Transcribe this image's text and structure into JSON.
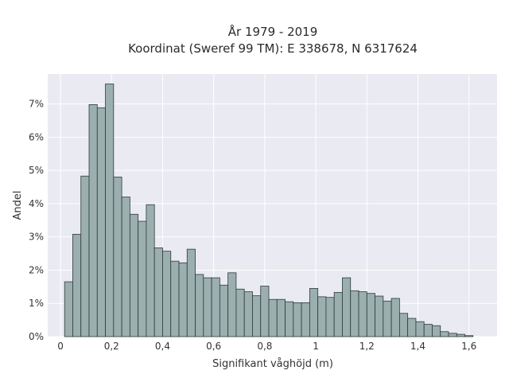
{
  "chart_data": {
    "type": "bar",
    "title_lines": [
      "År 1979 - 2019",
      "Koordinat (Sweref 99 TM): E 338678, N 6317624"
    ],
    "xlabel": "Signifikant våghöjd (m)",
    "ylabel": "Andel",
    "xlim": [
      -0.05,
      1.71
    ],
    "ylim": [
      0,
      7.9
    ],
    "x_ticks": [
      0,
      0.2,
      0.4,
      0.6,
      0.8,
      1.0,
      1.2,
      1.4,
      1.6
    ],
    "x_tick_labels": [
      "0",
      "0,2",
      "0,4",
      "0,6",
      "0,8",
      "1",
      "1,2",
      "1,4",
      "1,6"
    ],
    "y_ticks": [
      0,
      1,
      2,
      3,
      4,
      5,
      6,
      7
    ],
    "y_tick_labels": [
      "0%",
      "1%",
      "2%",
      "3%",
      "4%",
      "5%",
      "6%",
      "7%"
    ],
    "grid": true,
    "bin_width": 0.032,
    "bin_edges_start": 0.016,
    "values": [
      1.65,
      3.08,
      4.83,
      6.98,
      6.88,
      7.6,
      4.8,
      4.2,
      3.68,
      3.47,
      3.97,
      2.67,
      2.57,
      2.27,
      2.22,
      2.63,
      1.87,
      1.77,
      1.77,
      1.55,
      1.92,
      1.43,
      1.35,
      1.23,
      1.52,
      1.12,
      1.12,
      1.05,
      1.02,
      1.02,
      1.45,
      1.2,
      1.18,
      1.33,
      1.77,
      1.38,
      1.35,
      1.3,
      1.22,
      1.07,
      1.15,
      0.7,
      0.55,
      0.45,
      0.37,
      0.33,
      0.15,
      0.1,
      0.07,
      0.03
    ],
    "colors": {
      "bar_fill": "#9aafae",
      "bar_stroke": "#2e3b3a",
      "plot_bg": "#eaeaf2",
      "grid": "#ffffff"
    }
  }
}
